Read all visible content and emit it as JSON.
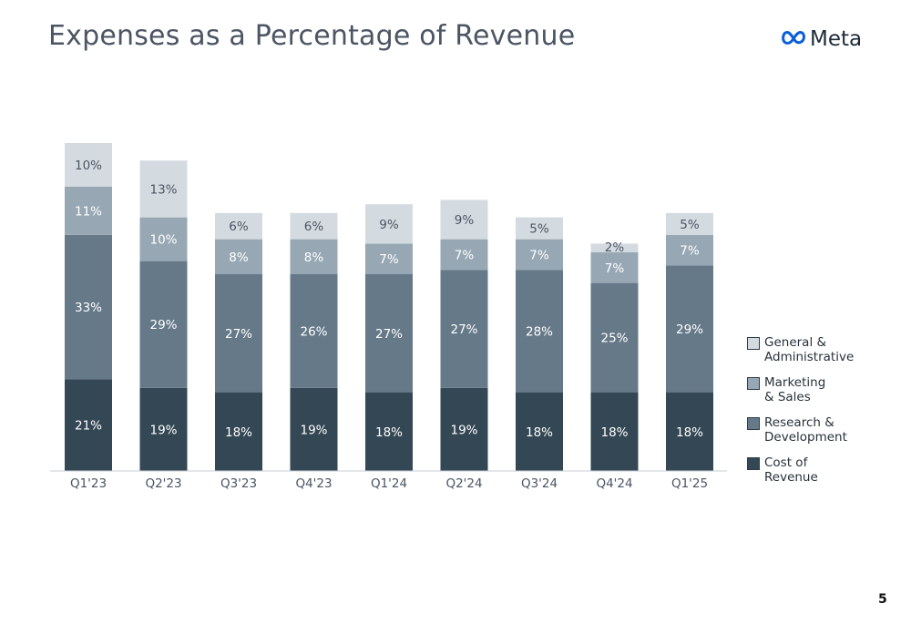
{
  "slide": {
    "title": "Expenses as a Percentage of Revenue",
    "logo_text": "Meta",
    "page_number": "5"
  },
  "colors": {
    "cost_of_revenue": "#344754",
    "research_development": "#667989",
    "marketing_sales": "#97a8b4",
    "general_administrative": "#d4dbe0"
  },
  "chart_data": {
    "type": "bar",
    "stacked": true,
    "categories": [
      "Q1'23",
      "Q2'23",
      "Q3'23",
      "Q4'23",
      "Q1'24",
      "Q2'24",
      "Q3'24",
      "Q4'24",
      "Q1'25"
    ],
    "series": [
      {
        "name": "Cost of\nRevenue",
        "color": "#344754",
        "label_color": "#ffffff",
        "values": [
          21,
          19,
          18,
          19,
          18,
          19,
          18,
          18,
          18
        ]
      },
      {
        "name": "Research &\nDevelopment",
        "color": "#667989",
        "label_color": "#ffffff",
        "values": [
          33,
          29,
          27,
          26,
          27,
          27,
          28,
          25,
          29
        ]
      },
      {
        "name": "Marketing\n& Sales",
        "color": "#97a8b4",
        "label_color": "#ffffff",
        "values": [
          11,
          10,
          8,
          8,
          7,
          7,
          7,
          7,
          7
        ]
      },
      {
        "name": "General &\nAdministrative",
        "color": "#d4dbe0",
        "label_color": "#4b5563",
        "values": [
          10,
          13,
          6,
          6,
          9,
          9,
          5,
          2,
          5
        ]
      }
    ],
    "data_labels": true,
    "label_suffix": "%",
    "legend_position": "right",
    "grid": false
  }
}
